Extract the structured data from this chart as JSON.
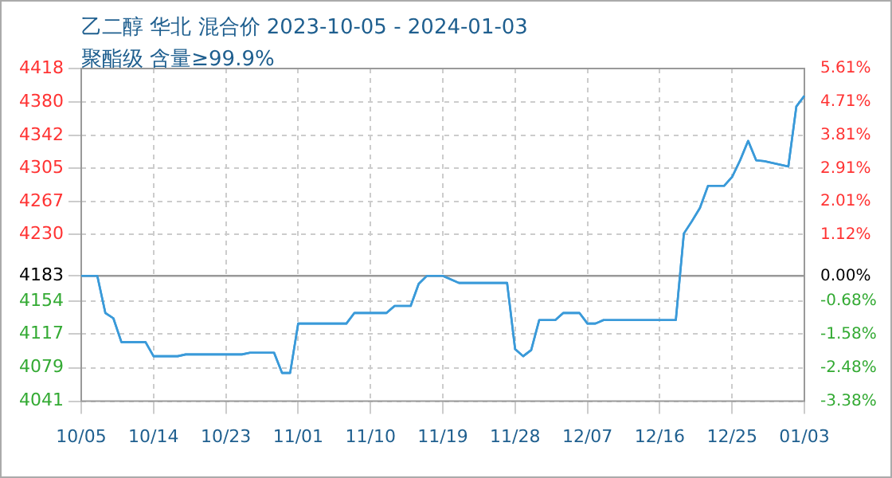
{
  "chart_data": {
    "type": "line",
    "title": "乙二醇 华北 混合价 2023-10-05 - 2024-01-03",
    "subtitle": "聚酯级 含量≥99.9%",
    "x": [
      "2023-10-05",
      "2023-10-07",
      "2023-10-08",
      "2023-10-09",
      "2023-10-10",
      "2023-10-13",
      "2023-10-14",
      "2023-10-17",
      "2023-10-18",
      "2023-10-25",
      "2023-10-26",
      "2023-10-29",
      "2023-10-30",
      "2023-10-31",
      "2023-11-01",
      "2023-11-07",
      "2023-11-08",
      "2023-11-12",
      "2023-11-13",
      "2023-11-15",
      "2023-11-16",
      "2023-11-17",
      "2023-11-19",
      "2023-11-21",
      "2023-11-27",
      "2023-11-28",
      "2023-11-29",
      "2023-11-30",
      "2023-12-01",
      "2023-12-03",
      "2023-12-04",
      "2023-12-06",
      "2023-12-07",
      "2023-12-08",
      "2023-12-09",
      "2023-12-18",
      "2023-12-19",
      "2023-12-20",
      "2023-12-21",
      "2023-12-22",
      "2023-12-24",
      "2023-12-25",
      "2023-12-26",
      "2023-12-27",
      "2023-12-28",
      "2023-12-29",
      "2024-01-01",
      "2024-01-02",
      "2024-01-03"
    ],
    "series": [
      {
        "color": "#3a9ad9",
        "values": [
          4183,
          4183,
          4141,
          4135,
          4108,
          4108,
          4092,
          4092,
          4094,
          4094,
          4096,
          4096,
          4073,
          4073,
          4129,
          4129,
          4141,
          4141,
          4149,
          4149,
          4174,
          4183,
          4183,
          4175,
          4175,
          4100,
          4092,
          4099,
          4133,
          4133,
          4141,
          4141,
          4129,
          4129,
          4133,
          4133,
          4231,
          4245,
          4260,
          4285,
          4285,
          4295,
          4314,
          4336,
          4314,
          4313,
          4307,
          4375,
          4387
        ]
      }
    ],
    "xlim": [
      "2023-10-05",
      "2024-01-03"
    ],
    "xticks": [
      {
        "value": "2023-10-05",
        "label": "10/05"
      },
      {
        "value": "2023-10-14",
        "label": "10/14"
      },
      {
        "value": "2023-10-23",
        "label": "10/23"
      },
      {
        "value": "2023-11-01",
        "label": "11/01"
      },
      {
        "value": "2023-11-10",
        "label": "11/10"
      },
      {
        "value": "2023-11-19",
        "label": "11/19"
      },
      {
        "value": "2023-11-28",
        "label": "11/28"
      },
      {
        "value": "2023-12-07",
        "label": "12/07"
      },
      {
        "value": "2023-12-16",
        "label": "12/16"
      },
      {
        "value": "2023-12-25",
        "label": "12/25"
      },
      {
        "value": "2024-01-03",
        "label": "01/03"
      }
    ],
    "ylim": [
      4041,
      4418
    ],
    "yticks": [
      4041,
      4079,
      4117,
      4154,
      4183,
      4230,
      4267,
      4305,
      4342,
      4380,
      4418
    ],
    "y2lim": [
      -3.38,
      5.61
    ],
    "y2ticks": [
      {
        "value": -3.38,
        "label": "-3.38%"
      },
      {
        "value": -2.48,
        "label": "-2.48%"
      },
      {
        "value": -1.58,
        "label": "-1.58%"
      },
      {
        "value": -0.68,
        "label": "-0.68%"
      },
      {
        "value": 0,
        "label": "0.00%"
      },
      {
        "value": 1.12,
        "label": "1.12%"
      },
      {
        "value": 2.01,
        "label": "2.01%"
      },
      {
        "value": 2.91,
        "label": "2.91%"
      },
      {
        "value": 3.81,
        "label": "3.81%"
      },
      {
        "value": 4.71,
        "label": "4.71%"
      },
      {
        "value": 5.61,
        "label": "5.61%"
      }
    ],
    "ref_lines": [
      {
        "axis": "y",
        "value": 4183,
        "color": "#999999"
      }
    ],
    "grid": true,
    "legend": false,
    "marker": "none",
    "line_style": "solid"
  }
}
